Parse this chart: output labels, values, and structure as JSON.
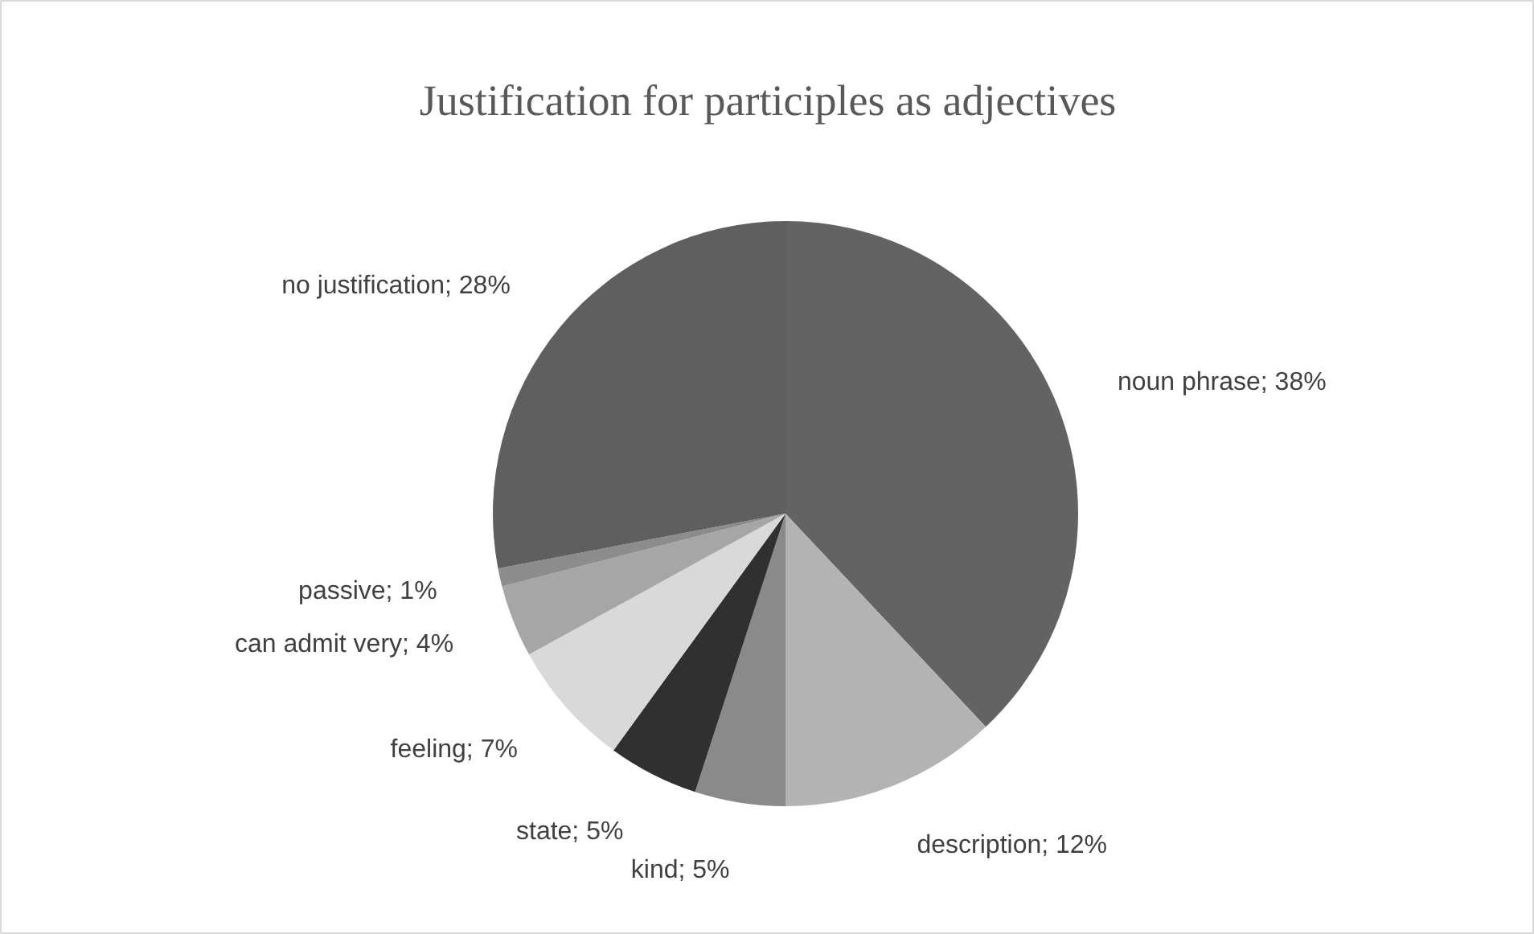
{
  "chart_data": {
    "type": "pie",
    "title": "Justification for participles as adjectives",
    "categories": [
      "noun phrase",
      "description",
      "kind",
      "state",
      "feeling",
      "can admit very",
      "passive",
      "no justification"
    ],
    "values": [
      38,
      12,
      5,
      5,
      7,
      4,
      1,
      28
    ],
    "value_labels": [
      "38%",
      "12%",
      "5%",
      "5%",
      "7%",
      "4%",
      "1%",
      "28%"
    ],
    "colors": [
      "#636363",
      "#b3b3b3",
      "#8a8a8a",
      "#303030",
      "#d9d9d9",
      "#a6a6a6",
      "#8c8c8c",
      "#5f5f5f"
    ]
  }
}
